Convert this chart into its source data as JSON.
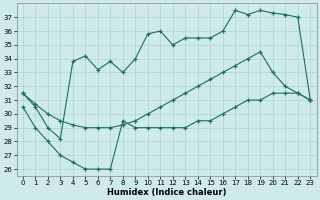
{
  "xlabel": "Humidex (Indice chaleur)",
  "background_color": "#ceeaea",
  "grid_color": "#aed4d4",
  "line_color": "#1a6e62",
  "top_x": [
    0,
    1,
    2,
    3,
    4,
    5,
    6,
    7,
    8,
    9,
    10,
    11,
    12,
    13,
    14,
    15,
    16,
    17,
    18,
    19,
    20,
    21,
    22,
    23
  ],
  "top_y": [
    31.5,
    30.5,
    29.0,
    28.2,
    33.8,
    34.2,
    33.2,
    33.8,
    33.0,
    34.0,
    35.8,
    36.0,
    35.0,
    35.5,
    35.5,
    35.5,
    36.0,
    37.5,
    37.2,
    37.5,
    37.3,
    37.2,
    37.0,
    31.0
  ],
  "mid_x": [
    0,
    1,
    2,
    3,
    4,
    5,
    6,
    7,
    8,
    9,
    10,
    11,
    12,
    13,
    14,
    15,
    16,
    17,
    18,
    19,
    20,
    21,
    22,
    23
  ],
  "mid_y": [
    31.5,
    30.7,
    30.0,
    29.5,
    29.2,
    29.0,
    29.0,
    29.0,
    29.2,
    29.5,
    30.0,
    30.5,
    31.0,
    31.5,
    32.0,
    32.5,
    33.0,
    33.5,
    34.0,
    34.5,
    33.0,
    32.0,
    31.5,
    31.0
  ],
  "bot_x": [
    0,
    1,
    2,
    3,
    4,
    5,
    6,
    7,
    8,
    9,
    10,
    11,
    12,
    13,
    14,
    15,
    16,
    17,
    18,
    19,
    20,
    21,
    22,
    23
  ],
  "bot_y": [
    30.5,
    29.0,
    28.0,
    27.0,
    26.5,
    26.0,
    26.0,
    26.0,
    29.5,
    29.0,
    29.0,
    29.0,
    29.0,
    29.0,
    29.5,
    29.5,
    30.0,
    30.5,
    31.0,
    31.0,
    31.5,
    31.5,
    31.5,
    31.0
  ],
  "ylim": [
    25.5,
    38.0
  ],
  "xlim": [
    -0.5,
    23.5
  ],
  "yticks": [
    26,
    27,
    28,
    29,
    30,
    31,
    32,
    33,
    34,
    35,
    36,
    37
  ],
  "xticks": [
    0,
    1,
    2,
    3,
    4,
    5,
    6,
    7,
    8,
    9,
    10,
    11,
    12,
    13,
    14,
    15,
    16,
    17,
    18,
    19,
    20,
    21,
    22,
    23
  ]
}
